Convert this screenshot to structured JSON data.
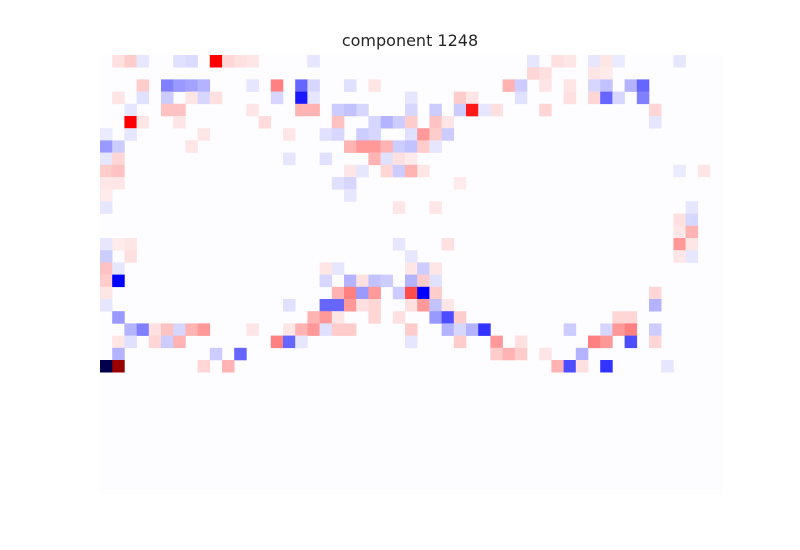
{
  "chart_data": {
    "type": "heatmap",
    "title": "component 1248",
    "rows": 36,
    "cols": 51,
    "colormap": "seismic",
    "vlim": [
      -1,
      1
    ],
    "grid": false,
    "colorbar": false,
    "cells": [
      [
        0,
        1,
        0.06
      ],
      [
        0,
        2,
        0.1
      ],
      [
        0,
        3,
        -0.05
      ],
      [
        0,
        6,
        -0.06
      ],
      [
        0,
        7,
        -0.07
      ],
      [
        0,
        9,
        0.5
      ],
      [
        0,
        10,
        0.08
      ],
      [
        0,
        11,
        0.06
      ],
      [
        0,
        12,
        0.05
      ],
      [
        0,
        17,
        -0.05
      ],
      [
        0,
        35,
        -0.05
      ],
      [
        0,
        37,
        0.06
      ],
      [
        0,
        38,
        0.05
      ],
      [
        0,
        40,
        -0.05
      ],
      [
        0,
        41,
        0.05
      ],
      [
        0,
        42,
        -0.04
      ],
      [
        0,
        47,
        -0.05
      ],
      [
        1,
        35,
        0.08
      ],
      [
        1,
        36,
        0.06
      ],
      [
        1,
        40,
        0.05
      ],
      [
        1,
        41,
        0.04
      ],
      [
        2,
        3,
        0.1
      ],
      [
        2,
        5,
        -0.25
      ],
      [
        2,
        6,
        -0.2
      ],
      [
        2,
        7,
        -0.18
      ],
      [
        2,
        8,
        -0.15
      ],
      [
        2,
        12,
        -0.05
      ],
      [
        2,
        14,
        0.25
      ],
      [
        2,
        16,
        -0.3
      ],
      [
        2,
        17,
        -0.08
      ],
      [
        2,
        20,
        -0.06
      ],
      [
        2,
        22,
        0.05
      ],
      [
        2,
        33,
        0.15
      ],
      [
        2,
        34,
        -0.1
      ],
      [
        2,
        36,
        0.05
      ],
      [
        2,
        38,
        0.05
      ],
      [
        2,
        40,
        -0.08
      ],
      [
        2,
        41,
        -0.12
      ],
      [
        2,
        43,
        -0.15
      ],
      [
        2,
        44,
        -0.3
      ],
      [
        3,
        1,
        0.05
      ],
      [
        3,
        3,
        -0.06
      ],
      [
        3,
        5,
        -0.1
      ],
      [
        3,
        7,
        0.05
      ],
      [
        3,
        8,
        -0.08
      ],
      [
        3,
        9,
        0.06
      ],
      [
        3,
        14,
        -0.08
      ],
      [
        3,
        16,
        -0.45
      ],
      [
        3,
        17,
        -0.05
      ],
      [
        3,
        25,
        -0.05
      ],
      [
        3,
        29,
        0.1
      ],
      [
        3,
        30,
        0.05
      ],
      [
        3,
        34,
        -0.06
      ],
      [
        3,
        38,
        0.06
      ],
      [
        3,
        40,
        0.08
      ],
      [
        3,
        41,
        -0.3
      ],
      [
        3,
        42,
        -0.08
      ],
      [
        3,
        44,
        -0.25
      ],
      [
        4,
        2,
        -0.05
      ],
      [
        4,
        5,
        0.12
      ],
      [
        4,
        6,
        0.12
      ],
      [
        4,
        12,
        0.05
      ],
      [
        4,
        16,
        0.15
      ],
      [
        4,
        17,
        0.15
      ],
      [
        4,
        19,
        -0.1
      ],
      [
        4,
        20,
        -0.12
      ],
      [
        4,
        21,
        -0.08
      ],
      [
        4,
        25,
        -0.08
      ],
      [
        4,
        27,
        -0.1
      ],
      [
        4,
        29,
        -0.1
      ],
      [
        4,
        30,
        -0.06
      ],
      [
        4,
        30,
        0.45
      ],
      [
        4,
        31,
        -0.05
      ],
      [
        4,
        32,
        0.06
      ],
      [
        4,
        36,
        0.08
      ],
      [
        4,
        45,
        0.08
      ],
      [
        5,
        2,
        0.5
      ],
      [
        5,
        3,
        0.05
      ],
      [
        5,
        6,
        0.05
      ],
      [
        5,
        13,
        0.07
      ],
      [
        5,
        19,
        0.12
      ],
      [
        5,
        22,
        -0.08
      ],
      [
        5,
        23,
        -0.15
      ],
      [
        5,
        24,
        -0.1
      ],
      [
        5,
        25,
        0.1
      ],
      [
        5,
        27,
        0.12
      ],
      [
        5,
        28,
        0.05
      ],
      [
        5,
        45,
        -0.05
      ],
      [
        6,
        0,
        -0.04
      ],
      [
        6,
        2,
        -0.05
      ],
      [
        6,
        8,
        0.05
      ],
      [
        6,
        15,
        0.05
      ],
      [
        6,
        18,
        -0.06
      ],
      [
        6,
        19,
        -0.08
      ],
      [
        6,
        21,
        -0.1
      ],
      [
        6,
        22,
        -0.08
      ],
      [
        6,
        25,
        -0.06
      ],
      [
        6,
        26,
        0.2
      ],
      [
        6,
        27,
        0.1
      ],
      [
        6,
        28,
        -0.1
      ],
      [
        7,
        0,
        -0.2
      ],
      [
        7,
        1,
        -0.1
      ],
      [
        7,
        7,
        0.05
      ],
      [
        7,
        20,
        0.15
      ],
      [
        7,
        21,
        0.2
      ],
      [
        7,
        22,
        0.2
      ],
      [
        7,
        23,
        0.15
      ],
      [
        7,
        24,
        -0.1
      ],
      [
        7,
        25,
        -0.12
      ],
      [
        7,
        26,
        0.1
      ],
      [
        7,
        27,
        -0.05
      ],
      [
        8,
        0,
        -0.05
      ],
      [
        8,
        1,
        0.08
      ],
      [
        8,
        15,
        -0.05
      ],
      [
        8,
        18,
        -0.06
      ],
      [
        8,
        22,
        0.15
      ],
      [
        8,
        23,
        -0.06
      ],
      [
        8,
        24,
        0.06
      ],
      [
        8,
        25,
        0.04
      ],
      [
        9,
        0,
        0.1
      ],
      [
        9,
        1,
        0.12
      ],
      [
        9,
        20,
        0.05
      ],
      [
        9,
        21,
        -0.05
      ],
      [
        9,
        23,
        0.08
      ],
      [
        9,
        24,
        -0.1
      ],
      [
        9,
        25,
        0.15
      ],
      [
        9,
        26,
        0.05
      ],
      [
        9,
        47,
        -0.04
      ],
      [
        9,
        49,
        0.05
      ],
      [
        10,
        0,
        0.05
      ],
      [
        10,
        1,
        0.05
      ],
      [
        10,
        19,
        -0.06
      ],
      [
        10,
        20,
        -0.08
      ],
      [
        10,
        29,
        0.04
      ],
      [
        11,
        0,
        0.04
      ],
      [
        11,
        20,
        -0.05
      ],
      [
        12,
        0,
        -0.05
      ],
      [
        12,
        24,
        0.05
      ],
      [
        12,
        27,
        0.05
      ],
      [
        12,
        48,
        -0.05
      ],
      [
        13,
        47,
        0.06
      ],
      [
        13,
        48,
        -0.08
      ],
      [
        14,
        47,
        0.05
      ],
      [
        14,
        48,
        0.15
      ],
      [
        15,
        0,
        -0.05
      ],
      [
        15,
        2,
        0.05
      ],
      [
        15,
        1,
        0.04
      ],
      [
        15,
        24,
        -0.05
      ],
      [
        15,
        28,
        0.06
      ],
      [
        15,
        47,
        0.2
      ],
      [
        15,
        48,
        0.05
      ],
      [
        16,
        0,
        -0.1
      ],
      [
        16,
        2,
        0.06
      ],
      [
        16,
        25,
        -0.05
      ],
      [
        16,
        47,
        0.05
      ],
      [
        16,
        48,
        -0.05
      ],
      [
        17,
        0,
        0.12
      ],
      [
        17,
        1,
        -0.05
      ],
      [
        17,
        18,
        0.05
      ],
      [
        17,
        19,
        -0.05
      ],
      [
        17,
        25,
        0.05
      ],
      [
        17,
        26,
        -0.1
      ],
      [
        17,
        27,
        0.05
      ],
      [
        18,
        0,
        0.1
      ],
      [
        18,
        1,
        -0.5
      ],
      [
        18,
        18,
        -0.08
      ],
      [
        18,
        20,
        -0.15
      ],
      [
        18,
        21,
        0.06
      ],
      [
        18,
        22,
        -0.12
      ],
      [
        18,
        23,
        -0.1
      ],
      [
        18,
        25,
        -0.15
      ],
      [
        18,
        26,
        0.1
      ],
      [
        18,
        27,
        -0.06
      ],
      [
        19,
        0,
        0.05
      ],
      [
        19,
        19,
        0.15
      ],
      [
        19,
        20,
        0.25
      ],
      [
        19,
        21,
        -0.2
      ],
      [
        19,
        22,
        0.2
      ],
      [
        19,
        24,
        -0.1
      ],
      [
        19,
        25,
        0.35
      ],
      [
        19,
        26,
        -0.5
      ],
      [
        19,
        27,
        0.1
      ],
      [
        19,
        45,
        0.08
      ],
      [
        20,
        0,
        -0.05
      ],
      [
        20,
        15,
        -0.06
      ],
      [
        20,
        18,
        -0.3
      ],
      [
        20,
        19,
        -0.3
      ],
      [
        20,
        20,
        0.2
      ],
      [
        20,
        21,
        0.06
      ],
      [
        20,
        22,
        0.08
      ],
      [
        20,
        25,
        0.06
      ],
      [
        20,
        26,
        0.2
      ],
      [
        20,
        27,
        -0.12
      ],
      [
        20,
        28,
        0.05
      ],
      [
        20,
        45,
        -0.15
      ],
      [
        21,
        1,
        -0.2
      ],
      [
        21,
        17,
        0.15
      ],
      [
        21,
        18,
        0.2
      ],
      [
        21,
        19,
        0.05
      ],
      [
        21,
        22,
        0.08
      ],
      [
        21,
        24,
        0.06
      ],
      [
        21,
        27,
        -0.2
      ],
      [
        21,
        28,
        -0.35
      ],
      [
        21,
        29,
        0.1
      ],
      [
        21,
        42,
        0.08
      ],
      [
        21,
        43,
        0.08
      ],
      [
        22,
        2,
        -0.15
      ],
      [
        22,
        3,
        -0.25
      ],
      [
        22,
        4,
        0.06
      ],
      [
        22,
        5,
        0.12
      ],
      [
        22,
        6,
        -0.08
      ],
      [
        22,
        7,
        0.15
      ],
      [
        22,
        8,
        0.2
      ],
      [
        22,
        12,
        0.05
      ],
      [
        22,
        15,
        0.05
      ],
      [
        22,
        16,
        0.15
      ],
      [
        22,
        17,
        0.2
      ],
      [
        22,
        18,
        -0.06
      ],
      [
        22,
        19,
        0.1
      ],
      [
        22,
        20,
        0.1
      ],
      [
        22,
        25,
        0.1
      ],
      [
        22,
        28,
        -0.15
      ],
      [
        22,
        29,
        -0.08
      ],
      [
        22,
        30,
        -0.15
      ],
      [
        22,
        31,
        -0.4
      ],
      [
        22,
        38,
        -0.1
      ],
      [
        22,
        41,
        -0.08
      ],
      [
        22,
        42,
        0.2
      ],
      [
        22,
        43,
        0.25
      ],
      [
        22,
        45,
        -0.1
      ],
      [
        23,
        1,
        0.05
      ],
      [
        23,
        2,
        -0.06
      ],
      [
        23,
        4,
        0.08
      ],
      [
        23,
        5,
        -0.1
      ],
      [
        23,
        6,
        0.15
      ],
      [
        23,
        14,
        0.25
      ],
      [
        23,
        15,
        -0.3
      ],
      [
        23,
        16,
        -0.05
      ],
      [
        23,
        25,
        -0.05
      ],
      [
        23,
        29,
        0.1
      ],
      [
        23,
        32,
        0.2
      ],
      [
        23,
        34,
        0.06
      ],
      [
        23,
        40,
        0.25
      ],
      [
        23,
        41,
        0.2
      ],
      [
        23,
        43,
        -0.35
      ],
      [
        23,
        45,
        0.08
      ],
      [
        24,
        1,
        -0.15
      ],
      [
        24,
        9,
        -0.1
      ],
      [
        24,
        11,
        -0.3
      ],
      [
        24,
        32,
        0.1
      ],
      [
        24,
        33,
        0.15
      ],
      [
        24,
        34,
        0.1
      ],
      [
        24,
        36,
        0.05
      ],
      [
        24,
        39,
        -0.15
      ],
      [
        25,
        0,
        -1.0
      ],
      [
        25,
        1,
        0.9
      ],
      [
        25,
        8,
        0.08
      ],
      [
        25,
        10,
        0.15
      ],
      [
        25,
        37,
        0.15
      ],
      [
        25,
        38,
        -0.35
      ],
      [
        25,
        39,
        0.06
      ],
      [
        25,
        41,
        -0.4
      ],
      [
        25,
        46,
        -0.05
      ]
    ]
  }
}
